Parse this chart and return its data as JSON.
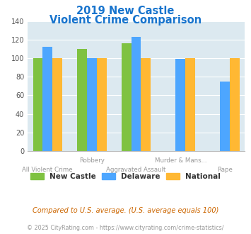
{
  "title_line1": "2019 New Castle",
  "title_line2": "Violent Crime Comparison",
  "title_color": "#1874cd",
  "new_castle": [
    100,
    110,
    116,
    null,
    null
  ],
  "delaware": [
    112,
    100,
    123,
    99,
    75
  ],
  "national": [
    100,
    100,
    100,
    100,
    100
  ],
  "colors": {
    "new_castle": "#7fc241",
    "delaware": "#4da6ff",
    "national": "#ffb833"
  },
  "ylim": [
    0,
    140
  ],
  "yticks": [
    0,
    20,
    40,
    60,
    80,
    100,
    120,
    140
  ],
  "plot_bg": "#dce9f0",
  "legend_labels": [
    "New Castle",
    "Delaware",
    "National"
  ],
  "top_labels": {
    "1": "Robbery",
    "3": "Murder & Mans..."
  },
  "bottom_labels": {
    "0": "All Violent Crime",
    "2": "Aggravated Assault",
    "4": "Rape"
  },
  "footnote1": "Compared to U.S. average. (U.S. average equals 100)",
  "footnote2": "© 2025 CityRating.com - https://www.cityrating.com/crime-statistics/",
  "footnote1_color": "#cc6600",
  "footnote2_color": "#999999",
  "label_color": "#999999",
  "bar_width": 0.22,
  "n_groups": 5
}
